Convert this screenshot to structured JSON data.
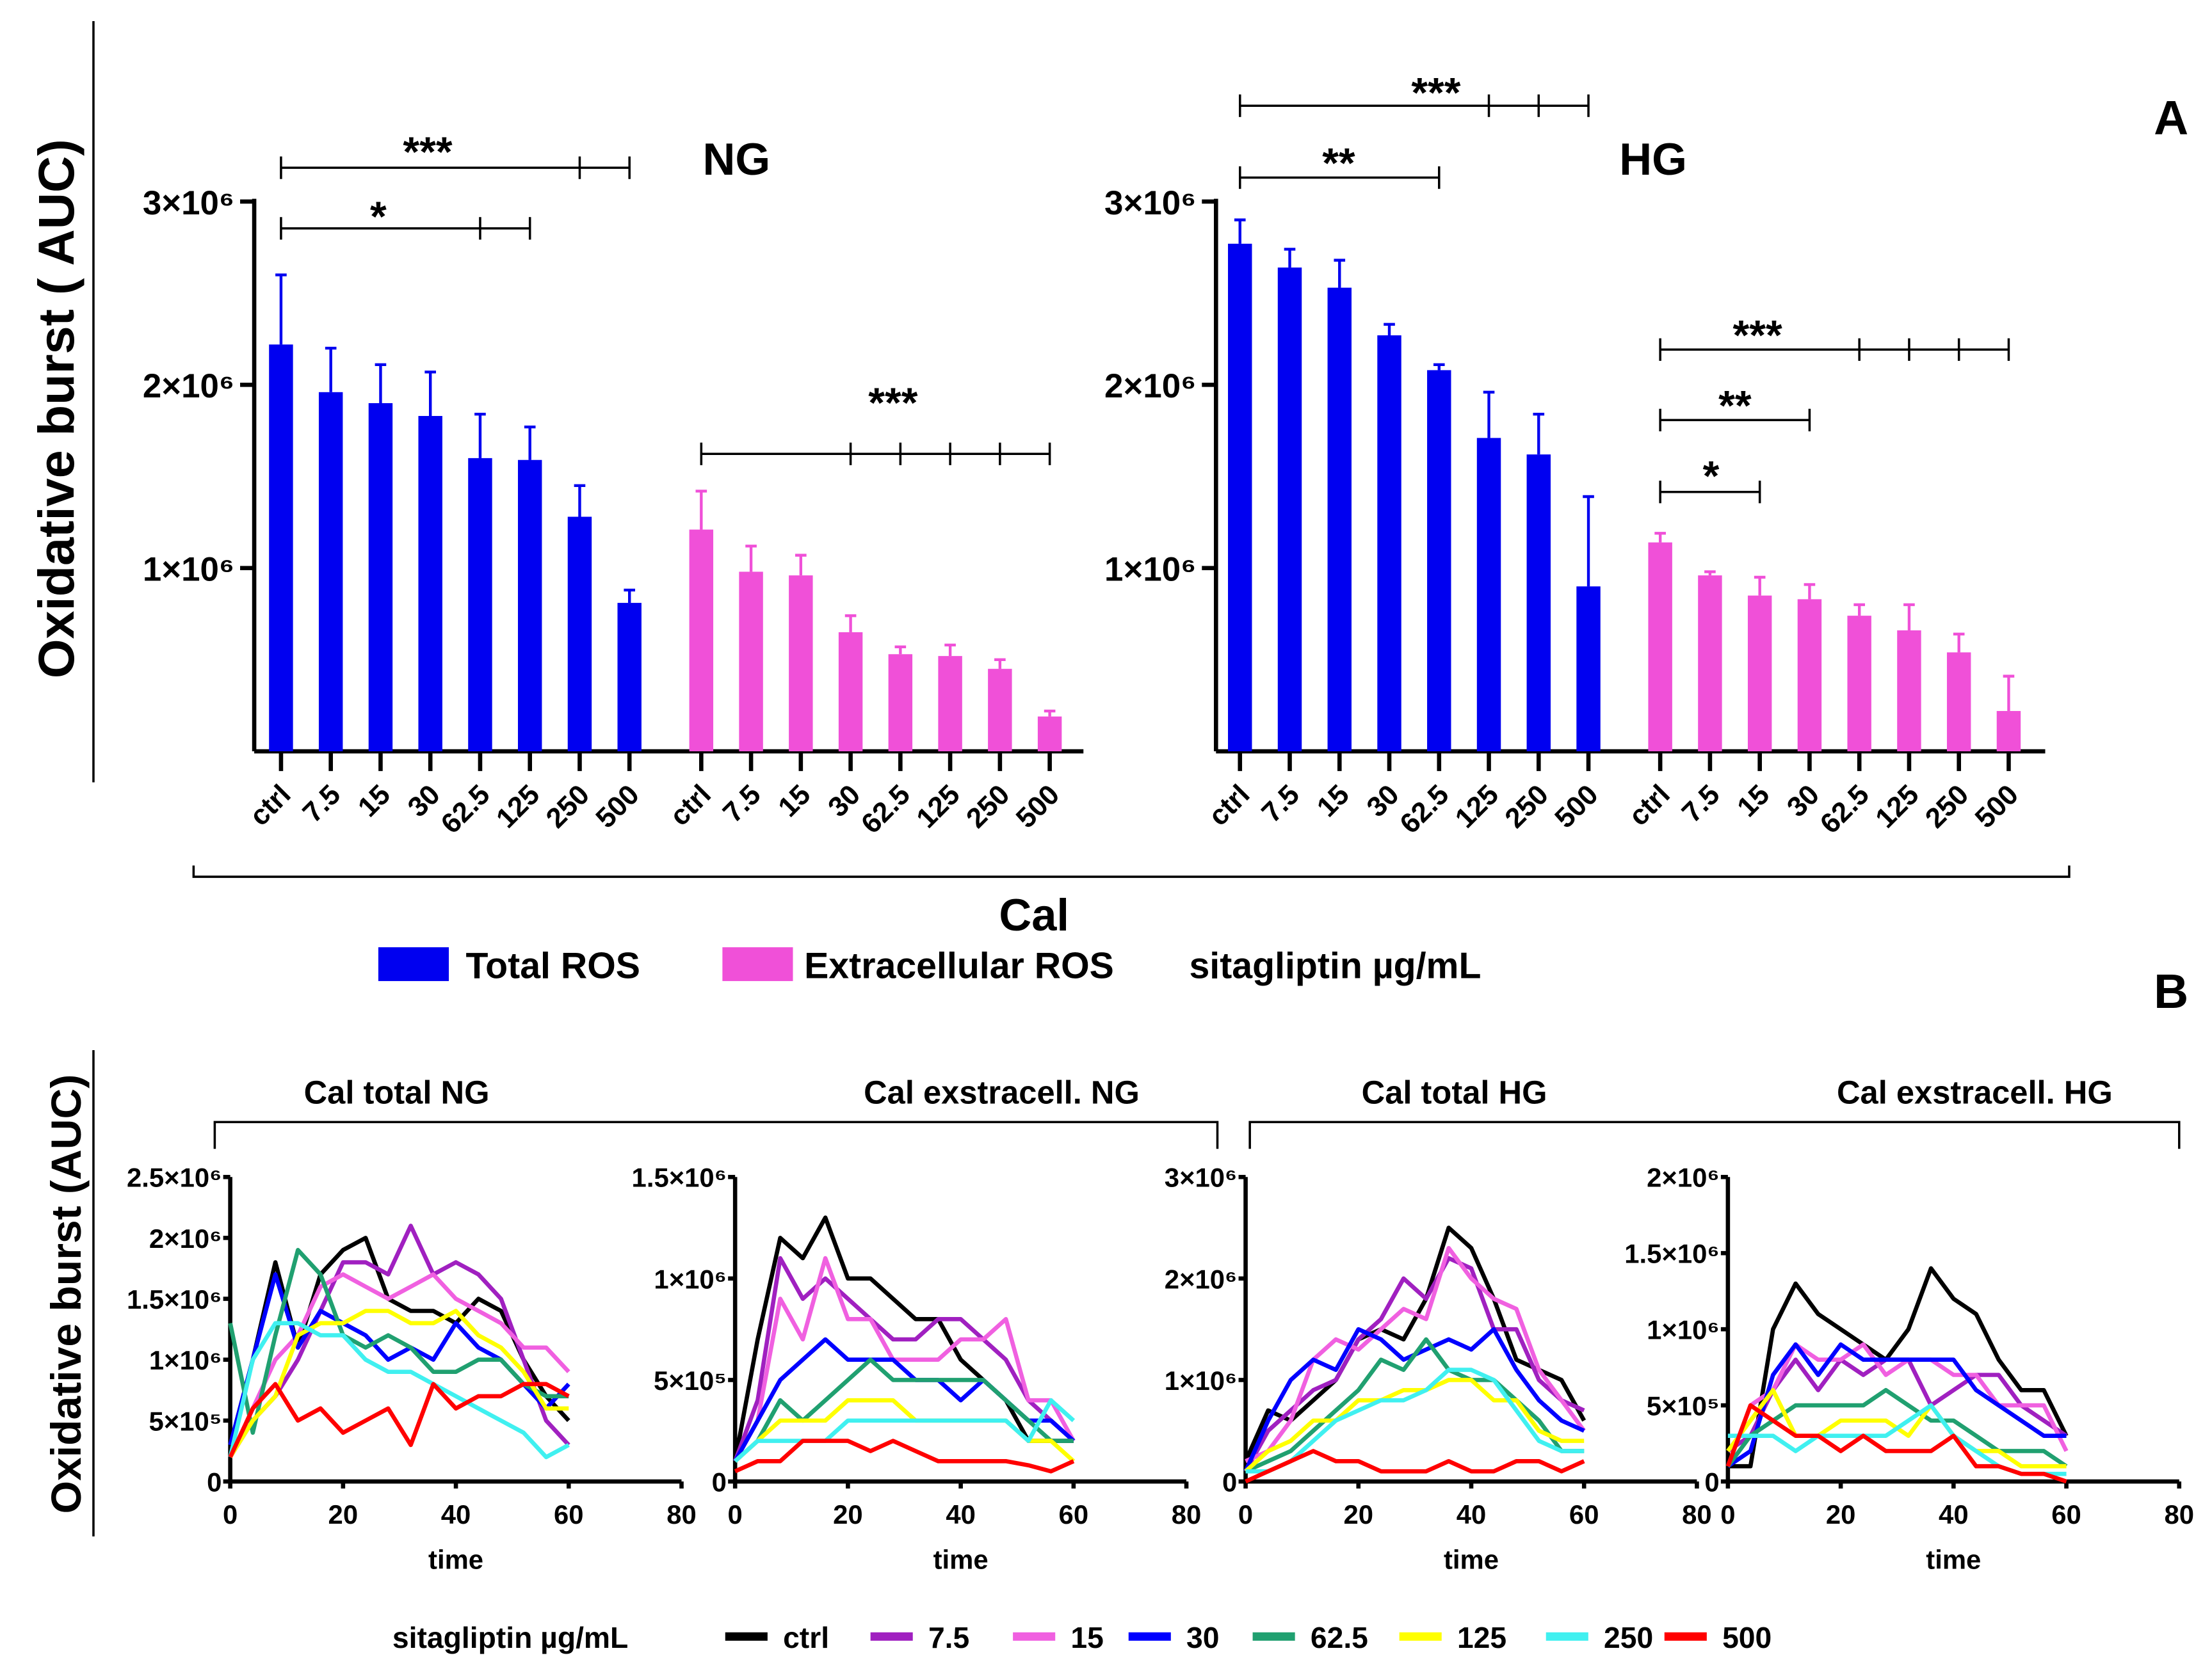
{
  "chart_data": [
    {
      "type": "bar",
      "panel_letter": "A",
      "ylabel": "Oxidative burst ( AUC)",
      "ylim": [
        0,
        3000000
      ],
      "yticks": [
        "1×10⁶",
        "2×10⁶",
        "3×10⁶"
      ],
      "ytick_values_millions": [
        1,
        2,
        3
      ],
      "bracket_label": "Cal",
      "categories": [
        "ctrl",
        "7.5",
        "15",
        "30",
        "62.5",
        "125",
        "250",
        "500"
      ],
      "legend": {
        "items": [
          {
            "name": "Total ROS",
            "color": "#0000f0"
          },
          {
            "name": "Extracellular ROS",
            "color": "#f050d8"
          }
        ],
        "unit_label": "sitagliptin µg/mL"
      },
      "panels": [
        {
          "label": "NG",
          "groups": [
            {
              "name": "Total ROS",
              "values_millions": [
                2.22,
                1.96,
                1.9,
                1.83,
                1.6,
                1.59,
                1.28,
                0.81
              ],
              "error_top_millions": [
                2.6,
                2.2,
                2.11,
                2.07,
                1.84,
                1.77,
                1.45,
                0.88
              ]
            },
            {
              "name": "Extracellular ROS",
              "values_millions": [
                1.21,
                0.98,
                0.96,
                0.65,
                0.53,
                0.52,
                0.45,
                0.19
              ],
              "error_top_millions": [
                1.42,
                1.12,
                1.07,
                0.74,
                0.57,
                0.58,
                0.5,
                0.22
              ]
            }
          ],
          "significance": [
            {
              "stars": "***",
              "from": 0,
              "to": [
                6,
                7
              ]
            },
            {
              "stars": "*",
              "from": 0,
              "to": [
                4,
                5
              ]
            },
            {
              "stars": "***",
              "from": 8,
              "to": [
                11,
                12,
                13,
                14,
                15
              ]
            }
          ]
        },
        {
          "label": "HG",
          "groups": [
            {
              "name": "Total ROS",
              "values_millions": [
                2.77,
                2.64,
                2.53,
                2.27,
                2.08,
                1.71,
                1.62,
                0.9
              ],
              "error_top_millions": [
                2.9,
                2.74,
                2.68,
                2.33,
                2.11,
                1.96,
                1.84,
                1.39
              ]
            },
            {
              "name": "Extracellular ROS",
              "values_millions": [
                1.14,
                0.96,
                0.85,
                0.83,
                0.74,
                0.66,
                0.54,
                0.22
              ],
              "error_top_millions": [
                1.19,
                0.98,
                0.95,
                0.91,
                0.8,
                0.8,
                0.64,
                0.41
              ]
            }
          ],
          "significance": [
            {
              "stars": "***",
              "from": 0,
              "to": [
                5,
                6,
                7
              ]
            },
            {
              "stars": "**",
              "from": 0,
              "to": [
                4
              ]
            },
            {
              "stars": "***",
              "from": 8,
              "to": [
                12,
                13,
                14,
                15
              ]
            },
            {
              "stars": "**",
              "from": 8,
              "to": [
                11
              ]
            },
            {
              "stars": "*",
              "from": 8,
              "to": [
                10
              ]
            }
          ]
        }
      ]
    },
    {
      "type": "line",
      "panel_letter": "B",
      "ylabel": "Oxidative burst (AUC)",
      "xlabel": "time",
      "xlim": [
        0,
        80
      ],
      "xticks": [
        "0",
        "20",
        "40",
        "60",
        "80"
      ],
      "x": [
        0,
        4,
        8,
        12,
        16,
        20,
        24,
        28,
        32,
        36,
        40,
        44,
        48,
        52,
        56,
        60
      ],
      "value_scale": 100000,
      "group_brackets": [
        "NG",
        "HG"
      ],
      "legend": {
        "title": "sitagliptin µg/mL",
        "series": [
          {
            "name": "ctrl",
            "color": "#000000"
          },
          {
            "name": "7.5",
            "color": "#a020c0"
          },
          {
            "name": "15",
            "color": "#f060e0"
          },
          {
            "name": "30",
            "color": "#0000ff"
          },
          {
            "name": "62.5",
            "color": "#20a070"
          },
          {
            "name": "125",
            "color": "#ffff00"
          },
          {
            "name": "250",
            "color": "#40f0f0"
          },
          {
            "name": "500",
            "color": "#ff0000"
          }
        ]
      },
      "charts": [
        {
          "title": "Cal total NG",
          "ymax_scaled": 25,
          "yticks": [
            {
              "v": 0,
              "label": "0"
            },
            {
              "v": 5,
              "label": "5×10⁵"
            },
            {
              "v": 10,
              "label": "1×10⁶"
            },
            {
              "v": 15,
              "label": "1.5×10⁶"
            },
            {
              "v": 20,
              "label": "2×10⁶"
            },
            {
              "v": 25,
              "label": "2.5×10⁶"
            }
          ],
          "series": [
            [
              3,
              10,
              18,
              11,
              17,
              19,
              20,
              15,
              14,
              14,
              13,
              15,
              14,
              10,
              7,
              5
            ],
            [
              2,
              5,
              7,
              10,
              14,
              18,
              18,
              17,
              21,
              17,
              18,
              17,
              15,
              10,
              5,
              3
            ],
            [
              2,
              6,
              10,
              12,
              16,
              17,
              16,
              15,
              16,
              17,
              15,
              14,
              13,
              11,
              11,
              9
            ],
            [
              3,
              10,
              17,
              11,
              14,
              13,
              12,
              10,
              11,
              10,
              13,
              11,
              10,
              8,
              6,
              8
            ],
            [
              13,
              4,
              12,
              19,
              17,
              12,
              11,
              12,
              11,
              9,
              9,
              10,
              10,
              8,
              7,
              7
            ],
            [
              2,
              5,
              7,
              12,
              13,
              13,
              14,
              14,
              13,
              13,
              14,
              12,
              11,
              9,
              6,
              6
            ],
            [
              2,
              10,
              13,
              13,
              12,
              12,
              10,
              9,
              9,
              8,
              7,
              6,
              5,
              4,
              2,
              3
            ],
            [
              2,
              6,
              8,
              5,
              6,
              4,
              5,
              6,
              3,
              8,
              6,
              7,
              7,
              8,
              8,
              7
            ]
          ]
        },
        {
          "title": "Cal exstracell. NG",
          "ymax_scaled": 15,
          "yticks": [
            {
              "v": 0,
              "label": "0"
            },
            {
              "v": 5,
              "label": "5×10⁵"
            },
            {
              "v": 10,
              "label": "1×10⁶"
            },
            {
              "v": 15,
              "label": "1.5×10⁶"
            }
          ],
          "series": [
            [
              1,
              7,
              12,
              11,
              13,
              10,
              10,
              9,
              8,
              8,
              6,
              5,
              4,
              2,
              2,
              2
            ],
            [
              1,
              4,
              11,
              9,
              10,
              9,
              8,
              7,
              7,
              8,
              8,
              7,
              6,
              4,
              3,
              2
            ],
            [
              1,
              3,
              9,
              7,
              11,
              8,
              8,
              6,
              6,
              6,
              7,
              7,
              8,
              4,
              4,
              2
            ],
            [
              1,
              3,
              5,
              6,
              7,
              6,
              6,
              6,
              5,
              5,
              4,
              5,
              4,
              3,
              3,
              2
            ],
            [
              1,
              2,
              4,
              3,
              4,
              5,
              6,
              5,
              5,
              5,
              5,
              5,
              4,
              3,
              2,
              2
            ],
            [
              1,
              2,
              3,
              3,
              3,
              4,
              4,
              4,
              3,
              3,
              3,
              3,
              3,
              2,
              2,
              1
            ],
            [
              1,
              2,
              2,
              2,
              2,
              3,
              3,
              3,
              3,
              3,
              3,
              3,
              3,
              2,
              4,
              3
            ],
            [
              0.5,
              1,
              1,
              2,
              2,
              2,
              1.5,
              2,
              1.5,
              1,
              1,
              1,
              1,
              0.8,
              0.5,
              1
            ]
          ]
        },
        {
          "title": "Cal total HG",
          "ymax_scaled": 30,
          "yticks": [
            {
              "v": 0,
              "label": "0"
            },
            {
              "v": 10,
              "label": "1×10⁶"
            },
            {
              "v": 20,
              "label": "2×10⁶"
            },
            {
              "v": 30,
              "label": "3×10⁶"
            }
          ],
          "series": [
            [
              2,
              7,
              6,
              8,
              10,
              14,
              15,
              14,
              18,
              25,
              23,
              18,
              12,
              11,
              10,
              6
            ],
            [
              1,
              5,
              7,
              9,
              10,
              14,
              16,
              20,
              18,
              22,
              21,
              15,
              15,
              10,
              8,
              7
            ],
            [
              2,
              3,
              6,
              12,
              14,
              13,
              15,
              17,
              16,
              23,
              20,
              18,
              17,
              11,
              8,
              5
            ],
            [
              1,
              6,
              10,
              12,
              11,
              15,
              14,
              12,
              13,
              14,
              13,
              15,
              11,
              8,
              6,
              5
            ],
            [
              1,
              2,
              3,
              5,
              7,
              9,
              12,
              11,
              14,
              11,
              10,
              10,
              8,
              6,
              3,
              3
            ],
            [
              1,
              3,
              4,
              6,
              6,
              8,
              8,
              9,
              9,
              10,
              10,
              8,
              8,
              5,
              4,
              4
            ],
            [
              1,
              1,
              2,
              4,
              6,
              7,
              8,
              8,
              9,
              11,
              11,
              10,
              7,
              4,
              3,
              3
            ],
            [
              0,
              1,
              2,
              3,
              2,
              2,
              1,
              1,
              1,
              2,
              1,
              1,
              2,
              2,
              1,
              2
            ]
          ]
        },
        {
          "title": "Cal exstracell. HG",
          "ymax_scaled": 20,
          "yticks": [
            {
              "v": 0,
              "label": "0"
            },
            {
              "v": 5,
              "label": "5×10⁵"
            },
            {
              "v": 10,
              "label": "1×10⁶"
            },
            {
              "v": 15,
              "label": "1.5×10⁶"
            },
            {
              "v": 20,
              "label": "2×10⁶"
            }
          ],
          "series": [
            [
              1,
              1,
              10,
              13,
              11,
              10,
              9,
              8,
              10,
              14,
              12,
              11,
              8,
              6,
              6,
              3
            ],
            [
              2,
              3,
              6,
              8,
              6,
              8,
              7,
              8,
              8,
              5,
              6,
              7,
              7,
              5,
              4,
              3
            ],
            [
              1,
              5,
              6,
              9,
              8,
              8,
              9,
              7,
              8,
              8,
              7,
              7,
              5,
              5,
              5,
              2
            ],
            [
              1,
              2,
              7,
              9,
              7,
              9,
              8,
              8,
              8,
              8,
              8,
              6,
              5,
              4,
              3,
              3
            ],
            [
              1,
              3,
              4,
              5,
              5,
              5,
              5,
              6,
              5,
              4,
              4,
              3,
              2,
              2,
              2,
              1
            ],
            [
              2,
              4,
              6,
              3,
              3,
              4,
              4,
              4,
              3,
              5,
              3,
              2,
              2,
              1,
              1,
              1
            ],
            [
              3,
              3,
              3,
              2,
              3,
              3,
              3,
              3,
              4,
              5,
              3,
              2,
              1,
              0.5,
              0.5,
              0.5
            ],
            [
              1,
              5,
              4,
              3,
              3,
              2,
              3,
              2,
              2,
              2,
              3,
              1,
              1,
              0.5,
              0.5,
              0
            ]
          ]
        }
      ]
    }
  ]
}
